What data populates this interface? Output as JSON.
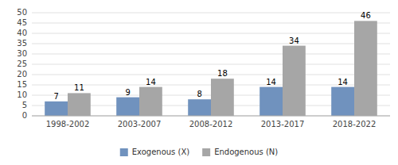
{
  "chart_data": {
    "type": "bar",
    "categories": [
      "1998-2002",
      "2003-2007",
      "2008-2012",
      "2013-2017",
      "2018-2022"
    ],
    "series": [
      {
        "name": "Exogenous (X)",
        "color": "#7092be",
        "values": [
          7,
          9,
          8,
          14,
          14
        ]
      },
      {
        "name": "Endogenous (N)",
        "color": "#a6a6a6",
        "values": [
          11,
          14,
          18,
          34,
          46
        ]
      }
    ],
    "ylim": [
      0,
      50
    ],
    "yticks": [
      0,
      5,
      10,
      15,
      20,
      25,
      30,
      35,
      40,
      45,
      50
    ],
    "grid": true,
    "data_labels": true,
    "legend": "bottom"
  }
}
